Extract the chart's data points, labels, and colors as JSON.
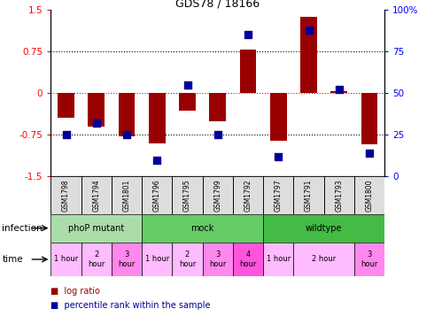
{
  "title": "GDS78 / 18166",
  "samples": [
    "GSM1798",
    "GSM1794",
    "GSM1801",
    "GSM1796",
    "GSM1795",
    "GSM1799",
    "GSM1792",
    "GSM1797",
    "GSM1791",
    "GSM1793",
    "GSM1800"
  ],
  "log_ratio": [
    -0.45,
    -0.6,
    -0.78,
    -0.9,
    -0.32,
    -0.5,
    0.78,
    -0.85,
    1.38,
    0.04,
    -0.92
  ],
  "percentile": [
    25,
    32,
    25,
    10,
    55,
    25,
    85,
    12,
    88,
    52,
    14
  ],
  "infection_groups": [
    {
      "label": "phoP mutant",
      "start": 0,
      "end": 3,
      "color": "#AADDAA"
    },
    {
      "label": "mock",
      "start": 3,
      "end": 7,
      "color": "#66CC66"
    },
    {
      "label": "wildtype",
      "start": 7,
      "end": 11,
      "color": "#44BB44"
    }
  ],
  "time_cells": [
    {
      "start": 0,
      "end": 1,
      "label": "1 hour",
      "color": "#FFBBFF"
    },
    {
      "start": 1,
      "end": 2,
      "label": "2\nhour",
      "color": "#FFBBFF"
    },
    {
      "start": 2,
      "end": 3,
      "label": "3\nhour",
      "color": "#FF88EE"
    },
    {
      "start": 3,
      "end": 4,
      "label": "1 hour",
      "color": "#FFBBFF"
    },
    {
      "start": 4,
      "end": 5,
      "label": "2\nhour",
      "color": "#FFBBFF"
    },
    {
      "start": 5,
      "end": 6,
      "label": "3\nhour",
      "color": "#FF88EE"
    },
    {
      "start": 6,
      "end": 7,
      "label": "4\nhour",
      "color": "#FF55DD"
    },
    {
      "start": 7,
      "end": 8,
      "label": "1 hour",
      "color": "#FFBBFF"
    },
    {
      "start": 8,
      "end": 10,
      "label": "2 hour",
      "color": "#FFBBFF"
    },
    {
      "start": 10,
      "end": 11,
      "label": "3\nhour",
      "color": "#FF88EE"
    }
  ],
  "ylim": [
    -1.5,
    1.5
  ],
  "yticks_left": [
    -1.5,
    -0.75,
    0,
    0.75,
    1.5
  ],
  "bar_color": "#990000",
  "dot_color": "#000099",
  "background_color": "#FFFFFF"
}
